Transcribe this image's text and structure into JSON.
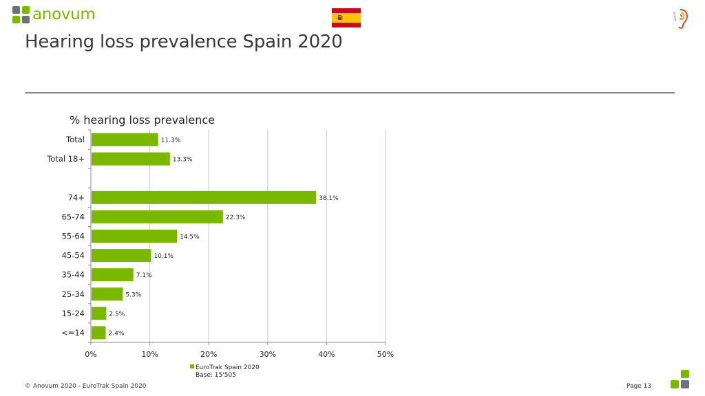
{
  "header": {
    "brand": "anovum",
    "title": "Hearing loss prevalence Spain 2020",
    "flag_country": "Spain",
    "partner_logo": "ehima"
  },
  "colors": {
    "brand_green": "#7ab800",
    "brand_gray": "#6d7278",
    "bar": "#7ab800",
    "flag_red": "#c60b1e",
    "flag_yellow": "#ffc400"
  },
  "chart_data": {
    "type": "bar",
    "orientation": "horizontal",
    "title": "% hearing loss prevalence",
    "categories": [
      "Total",
      "Total 18+",
      "",
      "74+",
      "65-74",
      "55-64",
      "45-54",
      "35-44",
      "25-34",
      "15-24",
      "<=14"
    ],
    "values": [
      11.3,
      13.3,
      null,
      38.1,
      22.3,
      14.5,
      10.1,
      7.1,
      5.3,
      2.5,
      2.4
    ],
    "data_labels": [
      "11.3%",
      "13.3%",
      "",
      "38.1%",
      "22.3%",
      "14.5%",
      "10.1%",
      "7.1%",
      "5.3%",
      "2.5%",
      "2.4%"
    ],
    "xlim": [
      0,
      50
    ],
    "xticks": [
      "0%",
      "10%",
      "20%",
      "30%",
      "40%",
      "50%"
    ],
    "grid": true,
    "series": [
      {
        "name": "EuroTrak Spain 2020",
        "values": [
          11.3,
          13.3,
          null,
          38.1,
          22.3,
          14.5,
          10.1,
          7.1,
          5.3,
          2.5,
          2.4
        ]
      }
    ],
    "legend": {
      "label": "EuroTrak Spain 2020",
      "base": "Base: 15'505",
      "placement": "bottom"
    }
  },
  "footer": {
    "copyright": "© Anovum 2020 - EuroTrak Spain 2020",
    "page": "Page 13"
  }
}
